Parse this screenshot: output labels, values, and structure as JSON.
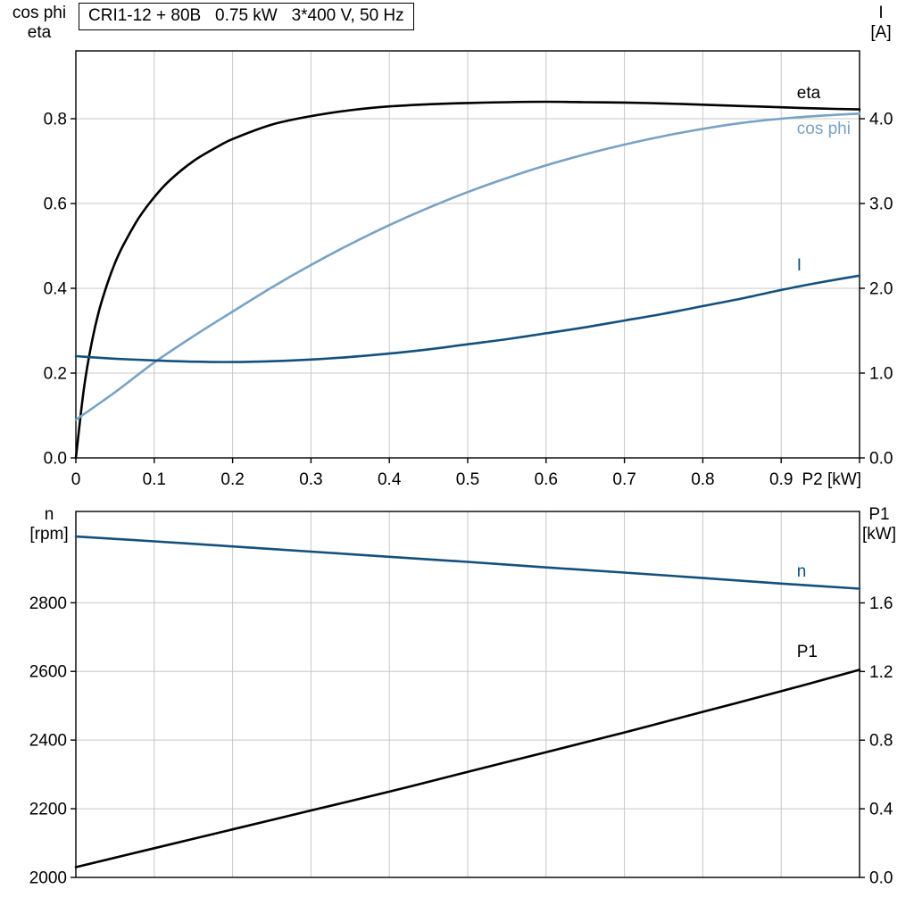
{
  "colors": {
    "black": "#000000",
    "steel_blue": "#78a2c4",
    "dark_blue": "#14507d",
    "grid": "#c8c8c8",
    "frame": "#000000"
  },
  "chart_data": [
    {
      "type": "line",
      "title": "CRI1-12 + 80B   0.75 kW   3*400 V, 50 Hz",
      "x_range": [
        0,
        1.0
      ],
      "x_tick_labels": [
        "0",
        "0.1",
        "0.2",
        "0.3",
        "0.4",
        "0.5",
        "0.6",
        "0.7",
        "0.8",
        "0.9"
      ],
      "x_grid": [
        0.1,
        0.2,
        0.3,
        0.4,
        0.5,
        0.6,
        0.7,
        0.8,
        0.9
      ],
      "x_axis_label": "P2 [kW]",
      "grid": true,
      "legend_position": "end-of-curve",
      "left_axis": {
        "label_lines": [
          "cos phi",
          "eta"
        ],
        "range": [
          0,
          0.96
        ],
        "tick_labels": [
          "0.0",
          "0.2",
          "0.4",
          "0.6",
          "0.8"
        ]
      },
      "right_axis": {
        "label_lines": [
          "I",
          "[A]"
        ],
        "range": [
          0,
          4.8
        ],
        "tick_labels": [
          "0.0",
          "1.0",
          "2.0",
          "3.0",
          "4.0"
        ]
      },
      "series": [
        {
          "name": "eta",
          "axis": "left",
          "color": "#000000",
          "label_at": [
            0.92,
            0.862
          ],
          "points": [
            [
              0,
              0
            ],
            [
              0.01,
              0.16
            ],
            [
              0.02,
              0.27
            ],
            [
              0.03,
              0.35
            ],
            [
              0.04,
              0.41
            ],
            [
              0.05,
              0.46
            ],
            [
              0.06,
              0.5
            ],
            [
              0.08,
              0.565
            ],
            [
              0.1,
              0.615
            ],
            [
              0.12,
              0.655
            ],
            [
              0.15,
              0.7
            ],
            [
              0.18,
              0.733
            ],
            [
              0.2,
              0.752
            ],
            [
              0.25,
              0.786
            ],
            [
              0.3,
              0.806
            ],
            [
              0.35,
              0.82
            ],
            [
              0.4,
              0.829
            ],
            [
              0.45,
              0.834
            ],
            [
              0.5,
              0.837
            ],
            [
              0.55,
              0.839
            ],
            [
              0.6,
              0.84
            ],
            [
              0.65,
              0.839
            ],
            [
              0.7,
              0.838
            ],
            [
              0.75,
              0.836
            ],
            [
              0.8,
              0.833
            ],
            [
              0.85,
              0.83
            ],
            [
              0.9,
              0.827
            ],
            [
              0.95,
              0.824
            ],
            [
              1.0,
              0.822
            ]
          ]
        },
        {
          "name": "cos phi",
          "axis": "left",
          "color": "#78a2c4",
          "label_at": [
            0.92,
            0.778
          ],
          "points": [
            [
              0,
              0.09
            ],
            [
              0.05,
              0.155
            ],
            [
              0.1,
              0.225
            ],
            [
              0.15,
              0.287
            ],
            [
              0.2,
              0.345
            ],
            [
              0.25,
              0.402
            ],
            [
              0.3,
              0.455
            ],
            [
              0.35,
              0.504
            ],
            [
              0.4,
              0.549
            ],
            [
              0.45,
              0.59
            ],
            [
              0.5,
              0.627
            ],
            [
              0.55,
              0.66
            ],
            [
              0.6,
              0.69
            ],
            [
              0.65,
              0.716
            ],
            [
              0.7,
              0.739
            ],
            [
              0.75,
              0.759
            ],
            [
              0.8,
              0.776
            ],
            [
              0.85,
              0.79
            ],
            [
              0.9,
              0.8
            ],
            [
              0.95,
              0.807
            ],
            [
              1.0,
              0.812
            ]
          ]
        },
        {
          "name": "I",
          "axis": "right",
          "color": "#14507d",
          "label_at": [
            0.92,
            2.28
          ],
          "points": [
            [
              0,
              1.2
            ],
            [
              0.05,
              1.17
            ],
            [
              0.1,
              1.15
            ],
            [
              0.15,
              1.135
            ],
            [
              0.2,
              1.13
            ],
            [
              0.25,
              1.14
            ],
            [
              0.3,
              1.16
            ],
            [
              0.35,
              1.19
            ],
            [
              0.4,
              1.23
            ],
            [
              0.45,
              1.28
            ],
            [
              0.5,
              1.34
            ],
            [
              0.55,
              1.4
            ],
            [
              0.6,
              1.47
            ],
            [
              0.65,
              1.54
            ],
            [
              0.7,
              1.62
            ],
            [
              0.75,
              1.7
            ],
            [
              0.8,
              1.79
            ],
            [
              0.85,
              1.88
            ],
            [
              0.9,
              1.98
            ],
            [
              0.95,
              2.07
            ],
            [
              1.0,
              2.15
            ]
          ]
        }
      ]
    },
    {
      "type": "line",
      "title": "",
      "x_range": [
        0,
        1.0
      ],
      "x_tick_labels": [],
      "x_grid": [
        0.1,
        0.2,
        0.3,
        0.4,
        0.5,
        0.6,
        0.7,
        0.8,
        0.9
      ],
      "x_axis_label": "",
      "grid": true,
      "legend_position": "end-of-curve",
      "left_axis": {
        "label_lines": [
          "n",
          "[rpm]"
        ],
        "range": [
          2000,
          3066
        ],
        "tick_labels": [
          "2000",
          "2200",
          "2400",
          "2600",
          "2800"
        ]
      },
      "right_axis": {
        "label_lines": [
          "P1",
          "[kW]"
        ],
        "range": [
          0,
          2.133
        ],
        "tick_labels": [
          "0.0",
          "0.4",
          "0.8",
          "1.2",
          "1.6"
        ]
      },
      "series": [
        {
          "name": "n",
          "axis": "left",
          "color": "#14507d",
          "label_at": [
            0.92,
            2893
          ],
          "points": [
            [
              0,
              2993
            ],
            [
              0.1,
              2979
            ],
            [
              0.2,
              2964
            ],
            [
              0.3,
              2949
            ],
            [
              0.4,
              2934
            ],
            [
              0.5,
              2919
            ],
            [
              0.6,
              2903
            ],
            [
              0.7,
              2888
            ],
            [
              0.8,
              2872
            ],
            [
              0.9,
              2856
            ],
            [
              1.0,
              2841
            ]
          ]
        },
        {
          "name": "P1",
          "axis": "right",
          "color": "#000000",
          "label_at": [
            0.92,
            1.32
          ],
          "points": [
            [
              0,
              0.06
            ],
            [
              0.1,
              0.17
            ],
            [
              0.2,
              0.28
            ],
            [
              0.3,
              0.39
            ],
            [
              0.4,
              0.5
            ],
            [
              0.5,
              0.615
            ],
            [
              0.6,
              0.73
            ],
            [
              0.7,
              0.845
            ],
            [
              0.8,
              0.965
            ],
            [
              0.9,
              1.085
            ],
            [
              1.0,
              1.21
            ]
          ]
        }
      ]
    }
  ]
}
